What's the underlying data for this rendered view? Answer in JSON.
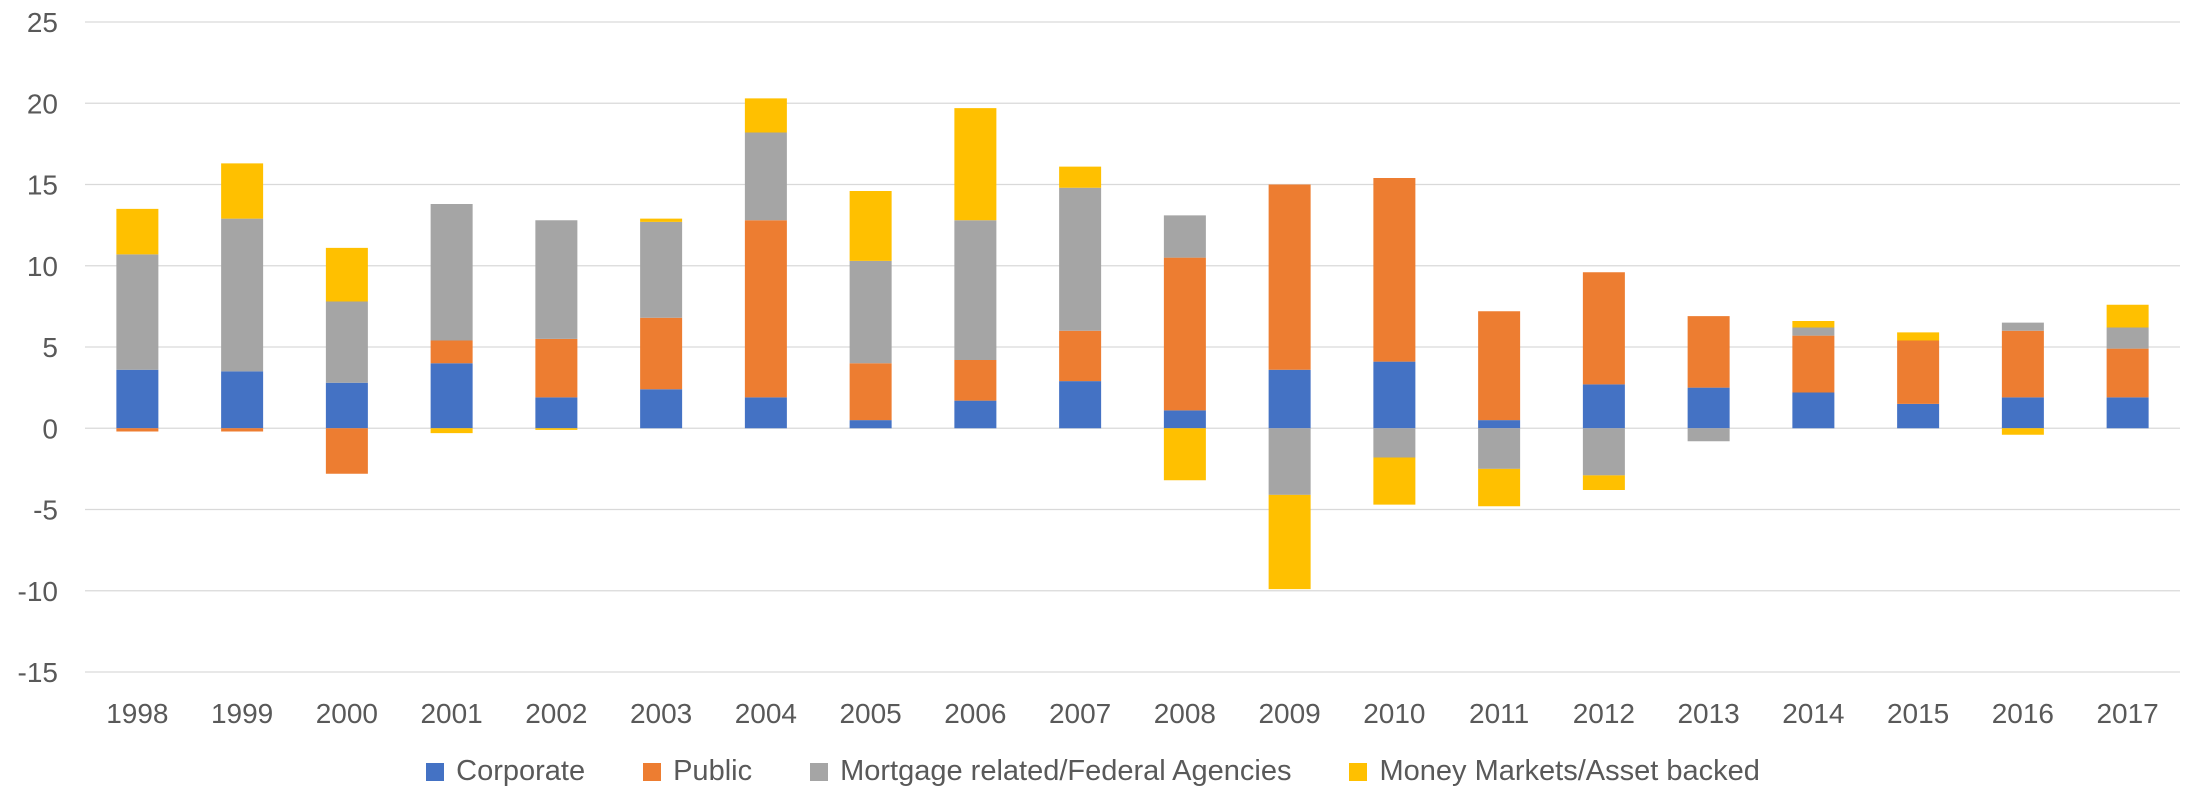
{
  "chart_data": {
    "type": "bar",
    "stacked": true,
    "categories": [
      "1998",
      "1999",
      "2000",
      "2001",
      "2002",
      "2003",
      "2004",
      "2005",
      "2006",
      "2007",
      "2008",
      "2009",
      "2010",
      "2011",
      "2012",
      "2013",
      "2014",
      "2015",
      "2016",
      "2017"
    ],
    "ylim": [
      -15,
      25
    ],
    "yticks": [
      25,
      20,
      15,
      10,
      5,
      0,
      -5,
      -10,
      -15
    ],
    "grid": true,
    "legend_position": "bottom",
    "series": [
      {
        "name": "Corporate",
        "color": "#4472C4",
        "values": [
          3.6,
          3.5,
          2.8,
          4.0,
          1.9,
          2.4,
          1.9,
          0.5,
          1.7,
          2.9,
          1.1,
          3.6,
          4.1,
          0.5,
          2.7,
          2.5,
          2.2,
          1.5,
          1.9,
          1.9
        ]
      },
      {
        "name": "Public",
        "color": "#ED7D31",
        "values": [
          -0.2,
          -0.2,
          -2.8,
          1.4,
          3.6,
          4.4,
          10.9,
          3.5,
          2.5,
          3.1,
          9.4,
          11.4,
          11.3,
          6.7,
          6.9,
          4.4,
          3.5,
          3.9,
          4.1,
          3.0
        ]
      },
      {
        "name": "Mortgage related/Federal Agencies",
        "color": "#A5A5A5",
        "values": [
          7.1,
          9.4,
          5.0,
          8.4,
          7.3,
          5.9,
          5.4,
          6.3,
          8.6,
          8.8,
          2.6,
          -4.1,
          -1.8,
          -2.5,
          -2.9,
          -0.8,
          0.5,
          0.0,
          0.5,
          1.3
        ]
      },
      {
        "name": "Money Markets/Asset backed",
        "color": "#FFC000",
        "values": [
          2.8,
          3.4,
          3.3,
          -0.3,
          -0.1,
          0.2,
          2.1,
          4.3,
          6.9,
          1.3,
          -3.2,
          -5.8,
          -2.9,
          -2.3,
          -0.9,
          0.0,
          0.4,
          0.5,
          -0.4,
          1.4
        ]
      }
    ]
  }
}
